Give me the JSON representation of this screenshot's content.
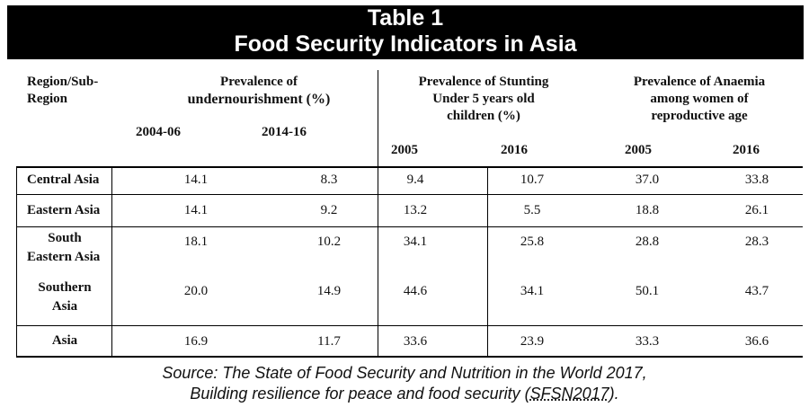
{
  "title": {
    "line1": "Table 1",
    "line2": "Food Security Indicators in Asia"
  },
  "table": {
    "headers": {
      "region": [
        "Region/Sub-",
        "Region"
      ],
      "undernourishment": [
        "Prevalence of",
        "undernourishment (%)"
      ],
      "stunting": [
        "Prevalence of Stunting",
        "Under 5 years old",
        "children (%)"
      ],
      "anaemia": [
        "Prevalence of Anaemia",
        "among women of",
        "reproductive age"
      ],
      "years": [
        "2004-06",
        "2014-16",
        "2005",
        "2016",
        "2005",
        "2016"
      ]
    },
    "rows": [
      {
        "region": [
          "Central Asia"
        ],
        "values": [
          "14.1",
          "8.3",
          "9.4",
          "10.7",
          "37.0",
          "33.8"
        ]
      },
      {
        "region": [
          "Eastern Asia"
        ],
        "values": [
          "14.1",
          "9.2",
          "13.2",
          "5.5",
          "18.8",
          "26.1"
        ]
      },
      {
        "region": [
          "South",
          "Eastern Asia"
        ],
        "values": [
          "18.1",
          "10.2",
          "34.1",
          "25.8",
          "28.8",
          "28.3"
        ]
      },
      {
        "region": [
          "Southern",
          "Asia"
        ],
        "values": [
          "20.0",
          "14.9",
          "44.6",
          "34.1",
          "50.1",
          "43.7"
        ]
      },
      {
        "region": [
          "Asia"
        ],
        "values": [
          "16.9",
          "11.7",
          "33.6",
          "23.9",
          "33.3",
          "36.6"
        ]
      }
    ]
  },
  "source": {
    "line1": "Source: The State of Food Security and Nutrition in the World 2017,",
    "line2_prefix": "Building resilience for peace and food security (",
    "line2_abbr": "SFSN2017",
    "line2_suffix": ")."
  }
}
